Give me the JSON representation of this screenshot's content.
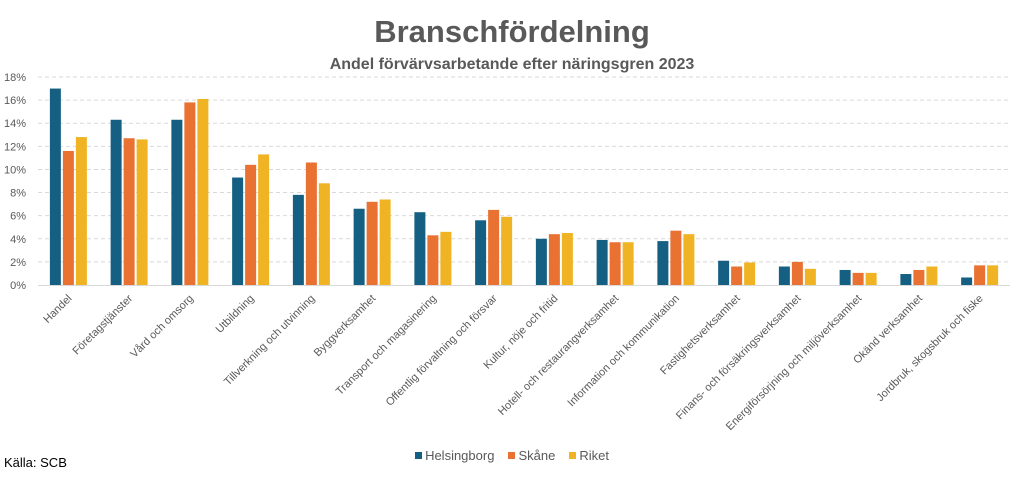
{
  "chart_data": {
    "type": "bar",
    "title": "Branschfördelning",
    "subtitle": "Andel förvärvsarbetande efter näringsgren 2023",
    "source": "Källa: SCB",
    "ylim": [
      0,
      18
    ],
    "yticks": [
      "0%",
      "2%",
      "4%",
      "6%",
      "8%",
      "10%",
      "12%",
      "14%",
      "16%",
      "18%"
    ],
    "grid": true,
    "legend_position": "bottom",
    "categories": [
      "Handel",
      "Företagstjänster",
      "Vård och omsorg",
      "Utbildning",
      "Tillverkning och utvinning",
      "Byggverksamhet",
      "Transport och magasinering",
      "Offentlig förvaltning och försvar",
      "Kultur, nöje och fritid",
      "Hotell- och restaurangverksamhet",
      "Information och kommunikation",
      "Fastighetsverksamhet",
      "Finans- och försäkringsverksamhet",
      "Energiförsörjning och miljöverksamhet",
      "Okänd verksamhet",
      "Jordbruk, skogsbruk och fiske"
    ],
    "series": [
      {
        "name": "Helsingborg",
        "color": "#156082",
        "values": [
          17.0,
          14.3,
          14.3,
          9.3,
          7.8,
          6.6,
          6.3,
          5.6,
          4.0,
          3.9,
          3.8,
          2.1,
          1.6,
          1.3,
          0.95,
          0.65
        ]
      },
      {
        "name": "Skåne",
        "color": "#E97132",
        "values": [
          11.6,
          12.7,
          15.8,
          10.4,
          10.6,
          7.2,
          4.3,
          6.5,
          4.4,
          3.7,
          4.7,
          1.6,
          2.0,
          1.05,
          1.3,
          1.7
        ]
      },
      {
        "name": "Riket",
        "color": "#F0B323",
        "values": [
          12.8,
          12.6,
          16.1,
          11.3,
          8.8,
          7.4,
          4.6,
          5.9,
          4.5,
          3.7,
          4.4,
          1.95,
          1.4,
          1.05,
          1.6,
          1.7
        ]
      }
    ]
  }
}
